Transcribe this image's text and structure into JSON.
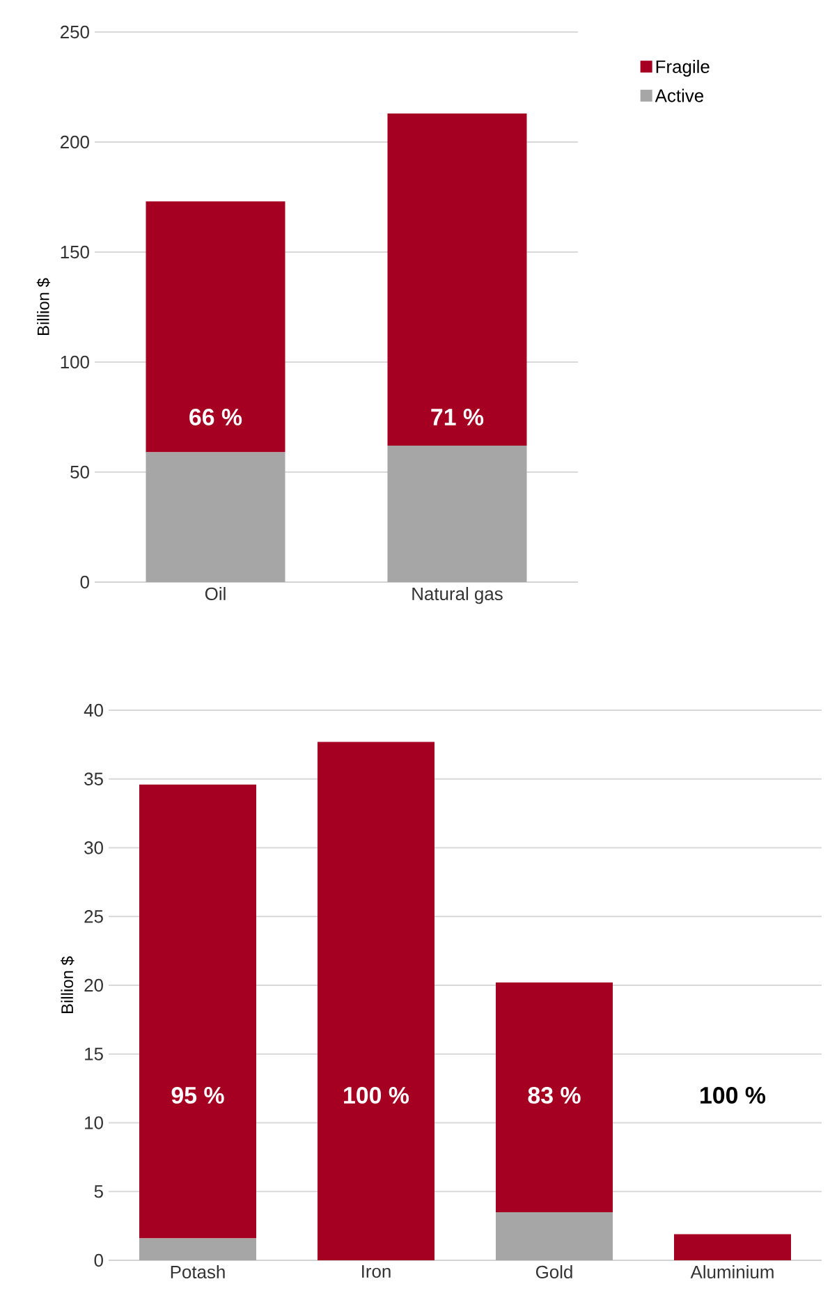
{
  "chart_data": [
    {
      "type": "bar",
      "stacked": true,
      "ylabel": "Billion $",
      "categories": [
        "Oil",
        "Natural gas"
      ],
      "series": [
        {
          "name": "Active",
          "color": "#a6a6a6",
          "values": [
            59,
            62
          ]
        },
        {
          "name": "Fragile",
          "color": "#a50021",
          "values": [
            114,
            151
          ]
        }
      ],
      "ylim": [
        0,
        250
      ],
      "yticks": [
        0,
        50,
        100,
        150,
        200,
        250
      ],
      "grid": "y",
      "legend": "top right",
      "annotations": [
        "66 %",
        "71 %"
      ]
    },
    {
      "type": "bar",
      "stacked": true,
      "ylabel": "Billion $",
      "categories": [
        "Potash",
        "Iron",
        "Gold",
        "Aluminium"
      ],
      "series": [
        {
          "color": "#a6a6a6",
          "values": [
            1.6,
            0,
            3.5,
            0
          ]
        },
        {
          "color": "#a50021",
          "values": [
            33.0,
            37.7,
            16.7,
            1.9
          ]
        }
      ],
      "ylim": [
        0,
        40
      ],
      "yticks": [
        0,
        5,
        10,
        15,
        20,
        25,
        30,
        35,
        40
      ],
      "grid": "y",
      "annotations": [
        "95 %",
        "100 %",
        "83 %",
        "100 %"
      ]
    }
  ]
}
